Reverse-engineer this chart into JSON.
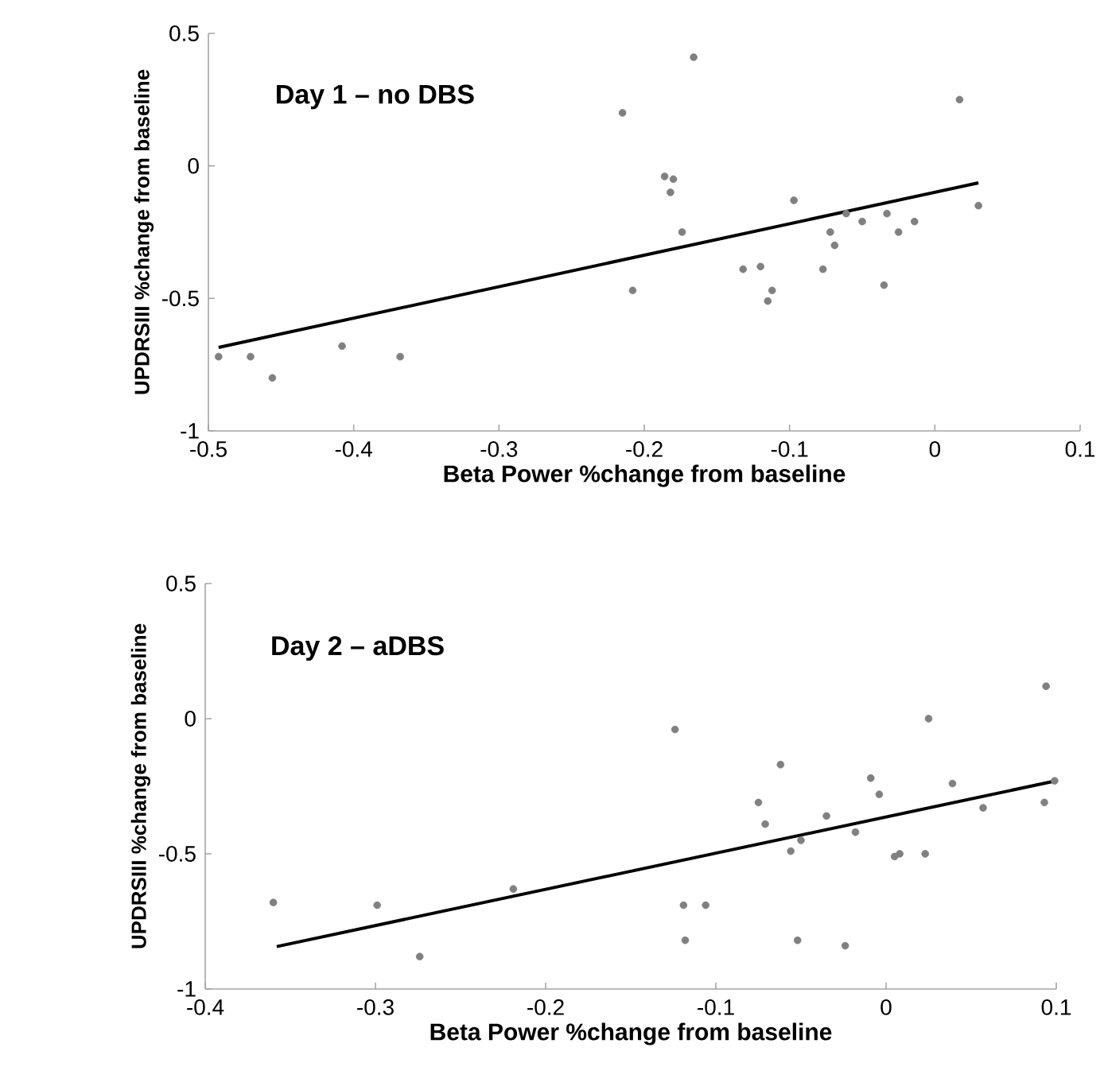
{
  "chart_data": [
    {
      "type": "scatter",
      "title": "Day 1 – no DBS",
      "xlabel": "Beta Power  %change from baseline",
      "ylabel": "UPDRSIII %change from baseline",
      "xlim": [
        -0.5,
        0.1
      ],
      "ylim": [
        -1,
        0.5
      ],
      "xticks": [
        -0.5,
        -0.4,
        -0.3,
        -0.2,
        -0.1,
        0,
        0.1
      ],
      "yticks": [
        -1,
        -0.5,
        0,
        0.5
      ],
      "series": [
        {
          "marker": "circle",
          "color": "#808080",
          "x": [
            -0.493,
            -0.471,
            -0.456,
            -0.408,
            -0.368,
            -0.215,
            -0.208,
            -0.166,
            -0.186,
            -0.18,
            -0.182,
            -0.174,
            -0.132,
            -0.12,
            -0.112,
            -0.115,
            -0.097,
            -0.077,
            -0.072,
            -0.069,
            -0.061,
            -0.05,
            -0.035,
            -0.033,
            -0.025,
            -0.014,
            0.017,
            0.03
          ],
          "values": [
            -0.72,
            -0.72,
            -0.8,
            -0.68,
            -0.72,
            0.2,
            -0.47,
            0.41,
            -0.04,
            -0.05,
            -0.1,
            -0.25,
            -0.39,
            -0.38,
            -0.47,
            -0.51,
            -0.13,
            -0.39,
            -0.25,
            -0.3,
            -0.18,
            -0.21,
            -0.45,
            -0.18,
            -0.25,
            -0.21,
            0.25,
            -0.15
          ]
        },
        {
          "type": "line",
          "marker": "none",
          "color": "#000000",
          "x": [
            -0.493,
            0.03
          ],
          "values": [
            -0.685,
            -0.064
          ]
        }
      ]
    },
    {
      "type": "scatter",
      "title": "Day 2 – aDBS",
      "xlabel": "Beta Power  %change from baseline",
      "ylabel": "UPDRSIII %change from baseline",
      "xlim": [
        -0.4,
        0.1
      ],
      "ylim": [
        -1,
        0.5
      ],
      "xticks": [
        -0.4,
        -0.3,
        -0.2,
        -0.1,
        0,
        0.1
      ],
      "yticks": [
        -1,
        -0.5,
        0,
        0.5
      ],
      "series": [
        {
          "marker": "circle",
          "color": "#808080",
          "x": [
            -0.36,
            -0.299,
            -0.274,
            -0.219,
            -0.124,
            -0.119,
            -0.106,
            -0.118,
            -0.075,
            -0.071,
            -0.062,
            -0.056,
            -0.05,
            -0.052,
            -0.035,
            -0.024,
            -0.018,
            -0.009,
            -0.004,
            0.005,
            0.008,
            0.023,
            0.025,
            0.039,
            0.057,
            0.094,
            0.093,
            0.099
          ],
          "values": [
            -0.68,
            -0.69,
            -0.88,
            -0.63,
            -0.04,
            -0.69,
            -0.69,
            -0.82,
            -0.31,
            -0.39,
            -0.17,
            -0.49,
            -0.45,
            -0.82,
            -0.36,
            -0.84,
            -0.42,
            -0.22,
            -0.28,
            -0.51,
            -0.5,
            -0.5,
            0,
            -0.24,
            -0.33,
            0.12,
            -0.31,
            -0.23
          ]
        },
        {
          "type": "line",
          "marker": "none",
          "color": "#000000",
          "x": [
            -0.358,
            0.099
          ],
          "values": [
            -0.843,
            -0.231
          ]
        }
      ]
    }
  ]
}
